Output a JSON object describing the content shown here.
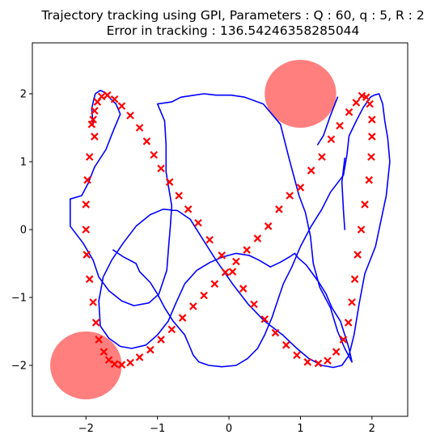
{
  "chart_data": {
    "type": "scatter",
    "title": "Trajectory tracking using GPI, Parameters : Q : 60, q : 5, R : 2",
    "subtitle": "Error in tracking : 136.54246358285044",
    "xlim": [
      -2.75,
      2.5
    ],
    "ylim": [
      -2.75,
      2.75
    ],
    "xticks": [
      -2,
      -1,
      0,
      1,
      2
    ],
    "yticks": [
      -2,
      -1,
      0,
      1,
      2
    ],
    "xtick_labels": [
      "−2",
      "−1",
      "0",
      "1",
      "2"
    ],
    "ytick_labels": [
      "−2",
      "−1",
      "0",
      "1",
      "2"
    ],
    "grid": false,
    "colors": {
      "trajectory": "#0000ff",
      "reference": "#ff0000",
      "obstacle": "#ff0000"
    },
    "obstacles": [
      {
        "cx": 1.0,
        "cy": 2.0,
        "r": 0.5
      },
      {
        "cx": -2.0,
        "cy": -2.0,
        "r": 0.5
      }
    ],
    "reference_points": {
      "x": [
        -1.9,
        -1.88,
        -1.95,
        -1.98,
        -2.0,
        -2.0,
        -1.99,
        -1.95,
        -1.9,
        -1.86,
        -1.82,
        -1.75,
        -1.68,
        -1.6,
        -1.5,
        -1.38,
        -1.25,
        -1.1,
        -0.95,
        -0.8,
        -0.65,
        -0.5,
        -0.35,
        -0.2,
        -0.05,
        0.1,
        0.25,
        0.4,
        0.55,
        0.7,
        0.85,
        1.0,
        1.15,
        1.3,
        1.43,
        1.55,
        1.68,
        1.78,
        1.86,
        1.92,
        1.97,
        2.0,
        2.0,
        1.99,
        1.96,
        1.9,
        1.85,
        1.8,
        1.76,
        1.72,
        1.67,
        1.6,
        1.5,
        1.38,
        1.25,
        1.1,
        0.95,
        0.8,
        0.65,
        0.5,
        0.35,
        0.2,
        0.05,
        -0.1,
        -0.27,
        -0.43,
        -0.57,
        -0.7,
        -0.83,
        -0.95,
        -1.05,
        -1.15,
        -1.25,
        -1.38,
        -1.5,
        -1.6,
        -1.7,
        -1.78,
        -1.84,
        -1.88,
        -1.92
      ],
      "y": [
        1.62,
        1.37,
        1.07,
        0.73,
        0.37,
        0.0,
        -0.37,
        -0.73,
        -1.07,
        -1.37,
        -1.62,
        -1.8,
        -1.92,
        -1.98,
        -1.99,
        -1.96,
        -1.88,
        -1.77,
        -1.62,
        -1.47,
        -1.3,
        -1.13,
        -0.97,
        -0.8,
        -0.63,
        -0.47,
        -0.3,
        -0.13,
        0.05,
        0.3,
        0.5,
        0.62,
        0.87,
        1.07,
        1.33,
        1.53,
        1.73,
        1.87,
        1.97,
        1.95,
        1.85,
        1.62,
        1.37,
        1.07,
        0.73,
        0.37,
        0.0,
        -0.37,
        -0.73,
        -1.07,
        -1.37,
        -1.62,
        -1.8,
        -1.93,
        -1.97,
        -1.95,
        -1.85,
        -1.7,
        -1.52,
        -1.32,
        -1.1,
        -0.87,
        -0.62,
        -0.38,
        -0.15,
        0.1,
        0.3,
        0.5,
        0.7,
        0.9,
        1.1,
        1.3,
        1.5,
        1.68,
        1.82,
        1.92,
        1.98,
        1.96,
        1.88,
        1.75,
        1.55
      ]
    },
    "trajectory": {
      "x": [
        -1.9,
        -1.92,
        -1.89,
        -1.87,
        -1.8,
        -1.74,
        -1.68,
        -1.58,
        -1.52,
        -1.62,
        -1.72,
        -1.88,
        -1.97,
        -2.06,
        -2.22,
        -2.22,
        -2.04,
        -1.9,
        -1.82,
        -1.68,
        -1.5,
        -1.33,
        -1.12,
        -0.98,
        -0.87,
        -0.84,
        -0.82,
        -0.8,
        -0.88,
        -0.88,
        -0.9,
        -1.0,
        -0.8,
        -0.67,
        -0.48,
        -0.35,
        -0.18,
        0.03,
        0.22,
        0.48,
        0.72,
        0.84,
        0.98,
        1.07,
        1.14,
        1.18,
        1.27,
        1.42,
        1.52,
        1.62,
        1.72,
        1.68,
        1.62,
        1.56,
        1.44,
        1.36,
        1.26,
        1.17,
        1.08,
        0.97,
        0.92,
        0.85,
        0.72,
        0.58,
        0.42,
        0.28,
        0.1,
        -0.08,
        -0.26,
        -0.45,
        -0.62,
        -0.75,
        -0.85,
        -1.0,
        -1.16,
        -1.36,
        -1.52,
        -1.68,
        -1.8,
        -1.82,
        -1.76,
        -1.64,
        -1.48,
        -1.3,
        -1.1,
        -0.92,
        -0.72,
        -0.54,
        -0.38,
        -0.18,
        0.05,
        0.27,
        0.5,
        0.75,
        0.95,
        1.12,
        1.3,
        1.46,
        1.58,
        1.68,
        1.75,
        1.82,
        1.9,
        2.05,
        2.1,
        2.2,
        2.25,
        2.22,
        2.18,
        2.15,
        2.1,
        2.03,
        1.98,
        1.88,
        1.78,
        1.68,
        1.65,
        1.6,
        1.42,
        1.3,
        1.15,
        1.0,
        0.88,
        0.76,
        0.68,
        0.6,
        0.5,
        0.4,
        0.26,
        0.1,
        -0.1,
        -0.28,
        -0.42,
        -0.5,
        -0.55,
        -0.62,
        -0.78,
        -0.9,
        -1.0,
        -1.1,
        -1.25,
        -1.3,
        -1.48,
        -1.62
      ],
      "y": [
        1.55,
        1.78,
        1.92,
        2.0,
        2.05,
        2.02,
        1.95,
        1.85,
        1.7,
        1.45,
        1.18,
        0.92,
        0.68,
        0.5,
        0.45,
        0.05,
        -0.2,
        -0.45,
        -0.7,
        -0.9,
        -1.05,
        -1.12,
        -1.08,
        -0.95,
        -0.6,
        -0.2,
        0.05,
        0.35,
        0.85,
        1.25,
        1.6,
        1.85,
        1.88,
        1.95,
        1.98,
        2.0,
        1.98,
        1.98,
        1.95,
        1.85,
        1.55,
        1.05,
        0.5,
        0.25,
        -0.1,
        -0.5,
        -0.85,
        -1.15,
        -1.5,
        -1.75,
        -1.95,
        -1.75,
        -1.55,
        -1.35,
        -1.15,
        -0.95,
        -0.78,
        -0.65,
        -0.52,
        -0.42,
        -0.35,
        -0.4,
        -0.48,
        -0.55,
        -0.45,
        -0.38,
        -0.35,
        -0.4,
        -0.48,
        -0.6,
        -0.8,
        -1.1,
        -1.35,
        -1.55,
        -1.7,
        -1.75,
        -1.72,
        -1.6,
        -1.42,
        -1.05,
        -0.7,
        -0.45,
        -0.2,
        0.05,
        0.22,
        0.3,
        0.28,
        0.15,
        -0.12,
        -0.45,
        -0.8,
        -1.1,
        -1.35,
        -1.55,
        -1.75,
        -1.9,
        -2.0,
        -2.03,
        -2.0,
        -1.85,
        -1.55,
        -1.1,
        -0.65,
        -0.25,
        0.0,
        0.5,
        1.0,
        1.35,
        1.6,
        1.85,
        2.0,
        1.98,
        1.95,
        1.8,
        1.6,
        1.38,
        1.1,
        0.8,
        0.55,
        0.3,
        0.05,
        -0.25,
        -0.55,
        -0.8,
        -1.05,
        -1.3,
        -1.55,
        -1.75,
        -1.9,
        -2.0,
        -2.02,
        -2.0,
        -1.95,
        -1.85,
        -1.72,
        -1.55,
        -1.35,
        -1.15,
        -0.95,
        -0.78,
        -0.62,
        -0.5,
        -0.4,
        -0.3
      ]
    },
    "trajectory_branch": {
      "x": [
        1.52,
        1.42,
        1.32,
        1.24
      ],
      "y": [
        1.95,
        1.68,
        1.38,
        1.25
      ]
    },
    "trajectory_tail": {
      "x": [
        1.62,
        1.58,
        1.6,
        1.62
      ],
      "y": [
        1.05,
        0.7,
        0.3,
        0.0
      ]
    }
  }
}
